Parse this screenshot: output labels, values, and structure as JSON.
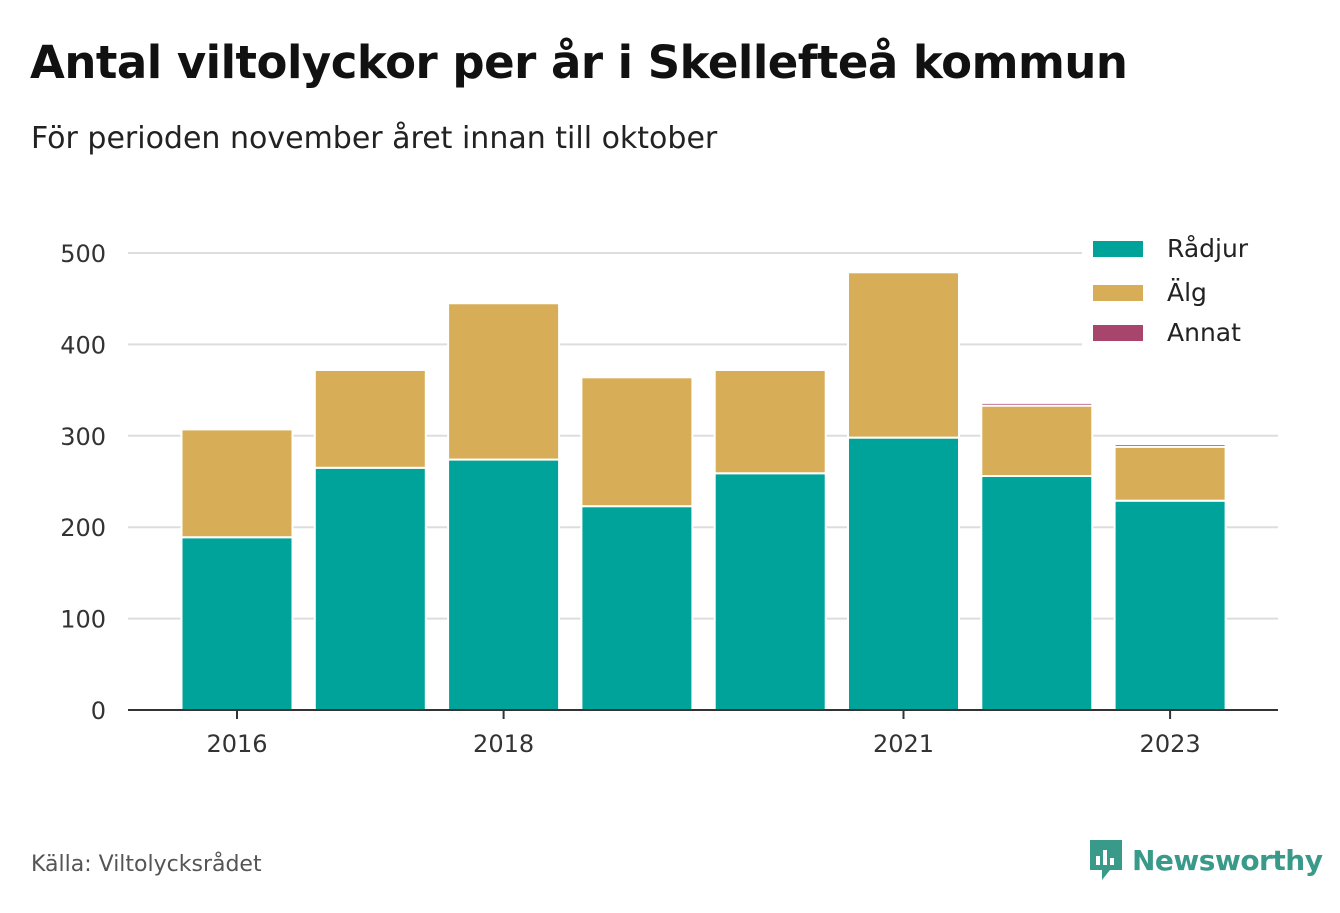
{
  "title": "Antal viltolyckor per år i Skellefteå kommun",
  "subtitle": "För perioden november året innan till oktober",
  "source": "Källa: Viltolycksrådet",
  "brand": {
    "name": "Newsworthy",
    "icon": "newsworthy-logo-icon",
    "color": "#3a9a8a"
  },
  "colors": {
    "radjur": "#00a39a",
    "alg": "#d8ad57",
    "annat": "#a8456c",
    "grid": "#dddddd",
    "axis": "#333333"
  },
  "chart_data": {
    "type": "bar",
    "stacked": true,
    "title": "Antal viltolyckor per år i Skellefteå kommun",
    "subtitle": "För perioden november året innan till oktober",
    "xlabel": "",
    "ylabel": "",
    "x": [
      2016,
      2017,
      2018,
      2019,
      2020,
      2021,
      2022,
      2023
    ],
    "x_tick_labels": [
      "2016",
      "2018",
      "2021",
      "2023"
    ],
    "x_tick_values": [
      2016,
      2018,
      2021,
      2023
    ],
    "y_ticks": [
      0,
      100,
      200,
      300,
      400,
      500
    ],
    "ylim": [
      0,
      500
    ],
    "grid": true,
    "legend_position": "top-right",
    "series": [
      {
        "name": "Rådjur",
        "color": "#00a39a",
        "values": [
          189,
          265,
          274,
          223,
          259,
          298,
          256,
          229
        ]
      },
      {
        "name": "Älg",
        "color": "#d8ad57",
        "values": [
          118,
          107,
          171,
          141,
          113,
          181,
          77,
          59
        ]
      },
      {
        "name": "Annat",
        "color": "#a8456c",
        "values": [
          0,
          0,
          0,
          0,
          2,
          2,
          3,
          3
        ]
      }
    ]
  }
}
